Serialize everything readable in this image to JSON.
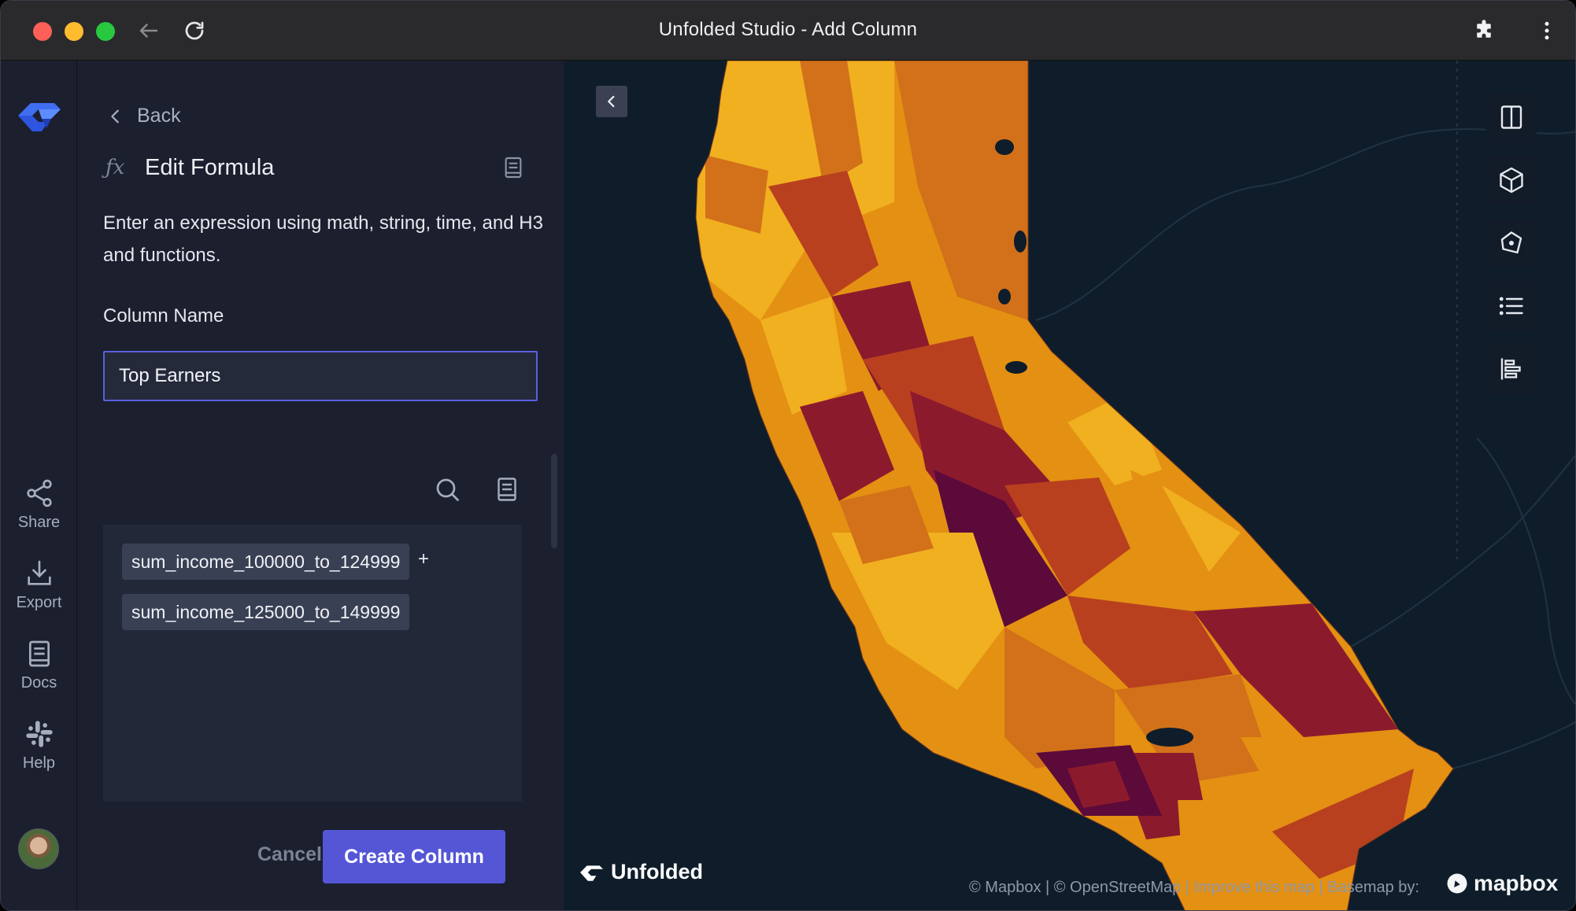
{
  "window": {
    "title": "Unfolded Studio - Add Column"
  },
  "rail": {
    "items": [
      {
        "label": "Share",
        "icon": "share-icon"
      },
      {
        "label": "Export",
        "icon": "export-icon"
      },
      {
        "label": "Docs",
        "icon": "docs-icon"
      },
      {
        "label": "Help",
        "icon": "slack-icon"
      }
    ]
  },
  "panel": {
    "back_label": "Back",
    "title": "Edit Formula",
    "description": "Enter an expression using math, string, time, and H3 and functions.",
    "column_name_label": "Column Name",
    "column_name_value": "Top Earners",
    "expression": {
      "tokens": [
        "sum_income_100000_to_124999",
        "sum_income_125000_to_149999"
      ],
      "operator": "+"
    },
    "cancel_label": "Cancel",
    "create_label": "Create Column"
  },
  "map": {
    "brand": "Unfolded",
    "attribution": "© Mapbox | © OpenStreetMap | Improve this map | Basemap by:",
    "mapbox_label": "mapbox",
    "controls": [
      "split-map-icon",
      "3d-cube-icon",
      "draw-polygon-icon",
      "legend-list-icon",
      "layer-bars-icon"
    ]
  },
  "colors": {
    "accent": "#5456d6",
    "panel_bg": "#1b1f2e",
    "map_water": "#0f1d2a",
    "choropleth": [
      "#f0b020",
      "#e49012",
      "#d2711a",
      "#b8401f",
      "#8c1a2d",
      "#5c0a3a"
    ]
  }
}
